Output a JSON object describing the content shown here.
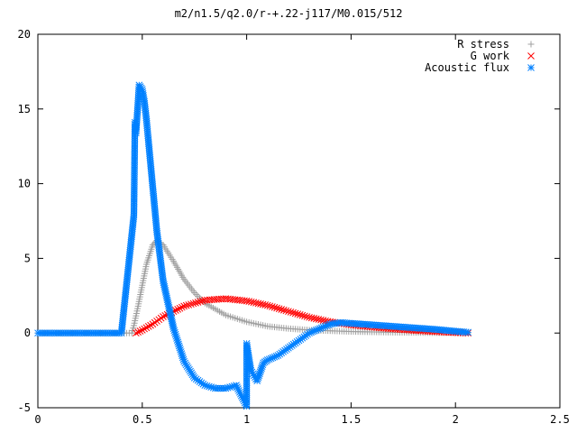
{
  "chart_data": {
    "type": "scatter",
    "title": "m2/n1.5/q2.0/r-+.22-j117/M0.015/512",
    "xlabel": "",
    "ylabel": "",
    "xlim": [
      0,
      2.5
    ],
    "ylim": [
      -5,
      20
    ],
    "xticks": [
      "0",
      "0.5",
      "1",
      "1.5",
      "2",
      "2.5"
    ],
    "yticks": [
      "-5",
      "0",
      "5",
      "10",
      "15",
      "20"
    ],
    "grid": false,
    "legend_position": "top-right",
    "series": [
      {
        "name": "R stress",
        "marker": "+",
        "color": "#a0a0a0",
        "x": [
          0,
          0.2,
          0.4,
          0.45,
          0.46,
          0.48,
          0.5,
          0.52,
          0.55,
          0.57,
          0.6,
          0.65,
          0.7,
          0.75,
          0.8,
          0.9,
          1.0,
          1.1,
          1.2,
          1.3,
          1.4,
          1.5,
          1.7,
          1.9,
          2.06
        ],
        "y": [
          0,
          0,
          0,
          0,
          0.5,
          1.8,
          3.2,
          4.6,
          5.9,
          6.2,
          5.9,
          4.8,
          3.6,
          2.7,
          2.0,
          1.2,
          0.75,
          0.45,
          0.3,
          0.2,
          0.15,
          0.1,
          0.05,
          0.02,
          0.01
        ]
      },
      {
        "name": "G work",
        "marker": "x",
        "color": "#ff0000",
        "x": [
          0.47,
          0.5,
          0.55,
          0.6,
          0.7,
          0.8,
          0.9,
          1.0,
          1.1,
          1.2,
          1.3,
          1.4,
          1.5,
          1.6,
          1.7,
          1.8,
          1.9,
          2.0,
          2.06
        ],
        "y": [
          0,
          0.2,
          0.6,
          1.1,
          1.8,
          2.2,
          2.3,
          2.15,
          1.85,
          1.45,
          1.05,
          0.75,
          0.55,
          0.4,
          0.28,
          0.18,
          0.1,
          0.03,
          0
        ]
      },
      {
        "name": "Acoustic flux",
        "marker": "*",
        "color": "#0080ff",
        "x": [
          0,
          0.2,
          0.4,
          0.46,
          0.465,
          0.47,
          0.48,
          0.485,
          0.49,
          0.5,
          0.51,
          0.52,
          0.53,
          0.55,
          0.57,
          0.6,
          0.65,
          0.7,
          0.75,
          0.8,
          0.85,
          0.9,
          0.95,
          1.0,
          1.0,
          1.02,
          1.05,
          1.08,
          1.1,
          1.15,
          1.2,
          1.25,
          1.3,
          1.35,
          1.4,
          1.45,
          1.5,
          1.6,
          1.7,
          1.8,
          1.9,
          2.0,
          2.06
        ],
        "y": [
          0,
          0,
          0,
          7.9,
          14.1,
          13.4,
          15.5,
          16.6,
          16.5,
          16.3,
          15.5,
          14.3,
          12.8,
          9.8,
          6.8,
          3.5,
          0.3,
          -1.9,
          -3.0,
          -3.5,
          -3.7,
          -3.7,
          -3.5,
          -4.9,
          -0.7,
          -2.5,
          -3.2,
          -2.0,
          -1.8,
          -1.5,
          -1.0,
          -0.5,
          0.0,
          0.3,
          0.6,
          0.7,
          0.65,
          0.55,
          0.45,
          0.35,
          0.25,
          0.12,
          0.05
        ]
      }
    ]
  }
}
